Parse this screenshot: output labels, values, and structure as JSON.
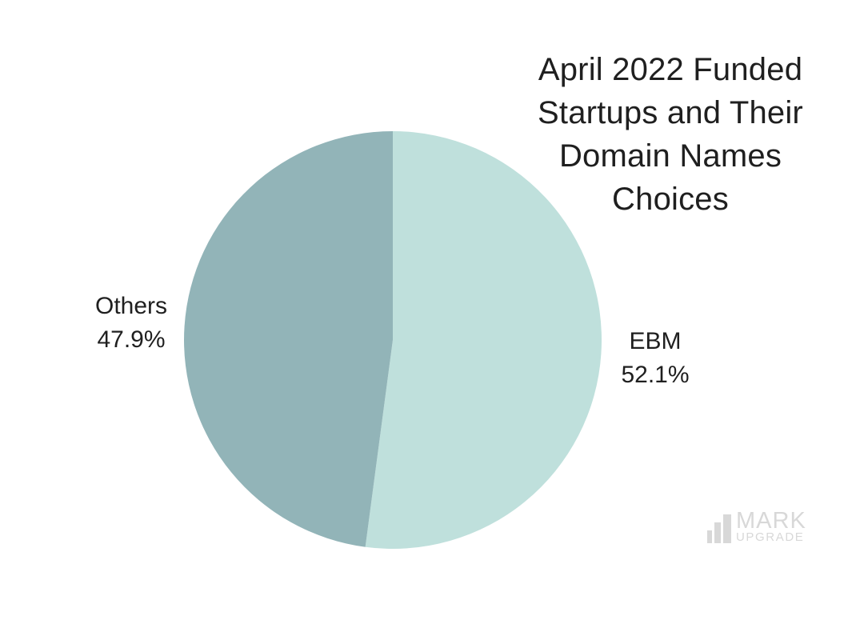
{
  "title": {
    "text": "April 2022 Funded Startups and Their Domain Names Choices",
    "color": "#1f1f1f"
  },
  "chart_data": {
    "type": "pie",
    "title": "April 2022 Funded Startups and Their Domain Names Choices",
    "start_angle_deg": 0,
    "direction": "clockwise",
    "legend_position": "none",
    "labels_outside": true,
    "slices": [
      {
        "label": "EBM",
        "value": 52.1,
        "pct_label": "52.1%",
        "color": "#bfe0dc"
      },
      {
        "label": "Others",
        "value": 47.9,
        "pct_label": "47.9%",
        "color": "#92b4b8"
      }
    ]
  },
  "watermark": {
    "brand_top": "MARK",
    "brand_bottom": "UPGRADE",
    "icon": "bar-chart-icon",
    "color": "#d8d8d8"
  }
}
